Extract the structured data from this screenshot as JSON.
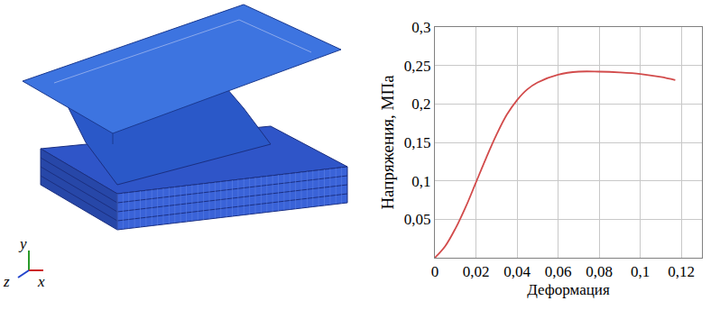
{
  "chart_data": {
    "type": "line",
    "x_label": "Деформация",
    "y_label": "Напряжения, МПа",
    "x": [
      0,
      0.005,
      0.01,
      0.015,
      0.02,
      0.025,
      0.03,
      0.035,
      0.04,
      0.045,
      0.05,
      0.06,
      0.07,
      0.08,
      0.09,
      0.1,
      0.11,
      0.117
    ],
    "series": [
      {
        "name": "Напряжения",
        "color": "#d24b4b",
        "line_style": "solid",
        "values": [
          0,
          0.015,
          0.038,
          0.066,
          0.098,
          0.13,
          0.16,
          0.186,
          0.205,
          0.219,
          0.228,
          0.238,
          0.242,
          0.242,
          0.241,
          0.239,
          0.235,
          0.231
        ]
      }
    ],
    "xlim": [
      0,
      0.13
    ],
    "xticks": [
      0,
      {
        "value": 0.02,
        "label": "0,02"
      },
      {
        "value": 0.04,
        "label": "0,04"
      },
      {
        "value": 0.06,
        "label": "0,06"
      },
      {
        "value": 0.08,
        "label": "0,08"
      },
      {
        "value": 0.1,
        "label": "0,1"
      },
      {
        "value": 0.12,
        "label": "0,12"
      }
    ],
    "ylim": [
      0,
      0.3
    ],
    "yticks": [
      {
        "value": 0.05,
        "label": "0,05"
      },
      {
        "value": 0.1,
        "label": "0,1"
      },
      {
        "value": 0.15,
        "label": "0,15"
      },
      {
        "value": 0.2,
        "label": "0,2"
      },
      {
        "value": 0.25,
        "label": "0,25"
      },
      {
        "value": 0.3,
        "label": "0,3"
      }
    ],
    "grid": true
  },
  "model_triad_labels": {
    "x": "x",
    "y": "y",
    "z": "z"
  }
}
